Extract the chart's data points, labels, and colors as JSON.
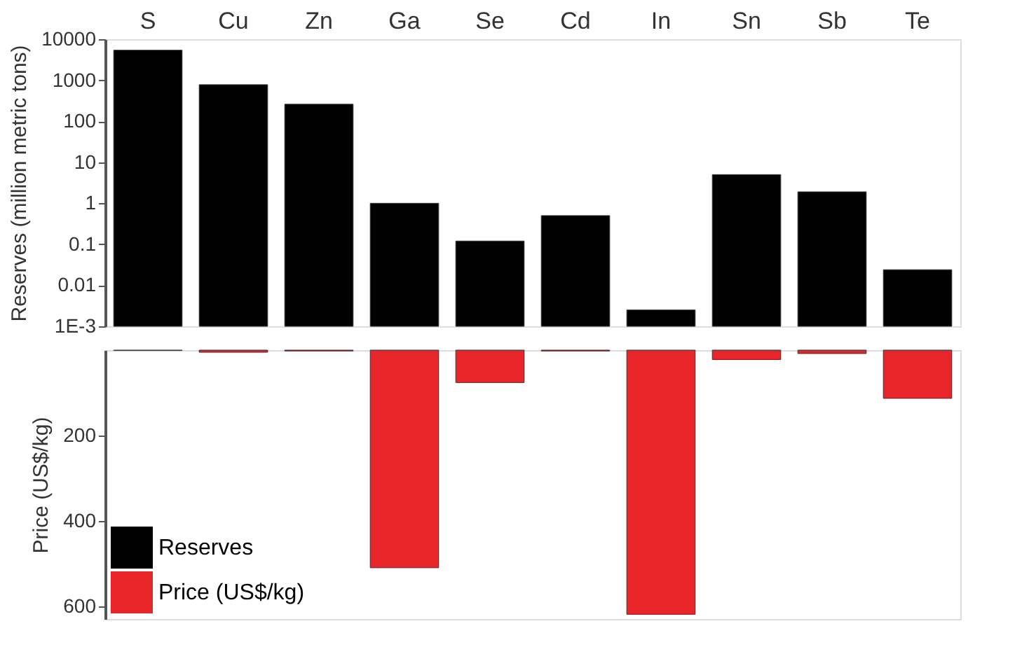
{
  "chart_data": [
    {
      "type": "bar",
      "categories": [
        "S",
        "Cu",
        "Zn",
        "Ga",
        "Se",
        "Cd",
        "In",
        "Sn",
        "Sb",
        "Te"
      ],
      "ylabel": "Reserves (million metric tons)",
      "log": true,
      "ylim": [
        0.001,
        10000
      ],
      "yticks": [
        {
          "value": 0.001,
          "label": "1E-3"
        },
        0.01,
        0.1,
        1,
        10,
        100,
        1000,
        10000
      ],
      "series": [
        {
          "name": "Reserves",
          "color": "#000000",
          "values": [
            5400,
            780,
            260,
            1,
            0.12,
            0.5,
            0.0025,
            5,
            1.9,
            0.024
          ]
        }
      ]
    },
    {
      "type": "bar",
      "ylabel": "Price (US$/kg)",
      "ylim": [
        630,
        0
      ],
      "yticks": [
        200,
        400,
        600
      ],
      "tick_labels": "y",
      "legend": "bottom left",
      "series": [
        {
          "name": "Price (US$/kg)",
          "color": "#e8262a",
          "values": [
            1,
            5,
            2,
            510,
            76,
            2,
            619,
            22,
            8,
            113
          ]
        }
      ]
    }
  ]
}
